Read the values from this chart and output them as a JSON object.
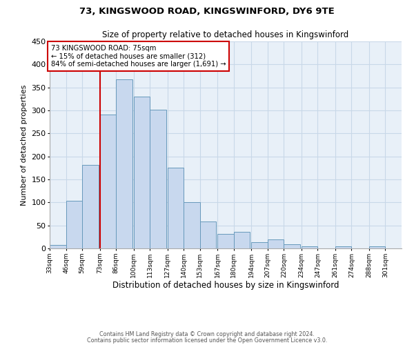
{
  "title1": "73, KINGSWOOD ROAD, KINGSWINFORD, DY6 9TE",
  "title2": "Size of property relative to detached houses in Kingswinford",
  "xlabel": "Distribution of detached houses by size in Kingswinford",
  "ylabel": "Number of detached properties",
  "bar_labels": [
    "33sqm",
    "46sqm",
    "59sqm",
    "73sqm",
    "86sqm",
    "100sqm",
    "113sqm",
    "127sqm",
    "140sqm",
    "153sqm",
    "167sqm",
    "180sqm",
    "194sqm",
    "207sqm",
    "220sqm",
    "234sqm",
    "247sqm",
    "261sqm",
    "274sqm",
    "288sqm",
    "301sqm"
  ],
  "bar_heights": [
    8,
    103,
    181,
    291,
    367,
    330,
    302,
    176,
    100,
    58,
    32,
    36,
    14,
    19,
    9,
    5,
    0,
    5,
    0,
    5,
    0
  ],
  "bin_edges": [
    33,
    46,
    59,
    73,
    86,
    100,
    113,
    127,
    140,
    153,
    167,
    180,
    194,
    207,
    220,
    234,
    247,
    261,
    274,
    288,
    301
  ],
  "bar_color": "#c8d8ee",
  "bar_edge_color": "#6699bb",
  "vline_x": 73,
  "vline_color": "#cc0000",
  "annotation_box_color": "#cc0000",
  "annotation_text_line1": "73 KINGSWOOD ROAD: 75sqm",
  "annotation_text_line2": "← 15% of detached houses are smaller (312)",
  "annotation_text_line3": "84% of semi-detached houses are larger (1,691) →",
  "ylim": [
    0,
    450
  ],
  "yticks": [
    0,
    50,
    100,
    150,
    200,
    250,
    300,
    350,
    400,
    450
  ],
  "footnote1": "Contains HM Land Registry data © Crown copyright and database right 2024.",
  "footnote2": "Contains public sector information licensed under the Open Government Licence v3.0.",
  "bg_color": "#e8f0f8",
  "grid_color": "#c8d8e8"
}
